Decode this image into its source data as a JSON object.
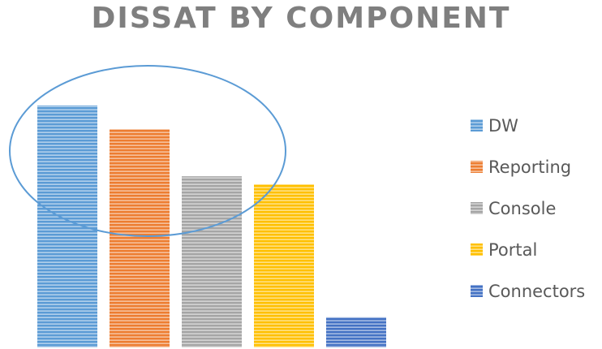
{
  "chart_data": {
    "type": "bar",
    "title": "DISSAT BY COMPONENT",
    "xlabel": "",
    "ylabel": "",
    "ylim": [
      0,
      310
    ],
    "grid": false,
    "legend_position": "right",
    "series": [
      {
        "name": "DW",
        "value": 304,
        "color": "#5b9bd5"
      },
      {
        "name": "Reporting",
        "value": 274,
        "color": "#ed7d31"
      },
      {
        "name": "Console",
        "value": 215,
        "color": "#a5a5a5"
      },
      {
        "name": "Portal",
        "value": 205,
        "color": "#ffc000"
      },
      {
        "name": "Connectors",
        "value": 38,
        "color": "#4472c4"
      }
    ],
    "annotation": {
      "shape": "ellipse",
      "color": "#5b9bd5",
      "highlights": [
        "DW",
        "Reporting",
        "Console"
      ]
    }
  }
}
